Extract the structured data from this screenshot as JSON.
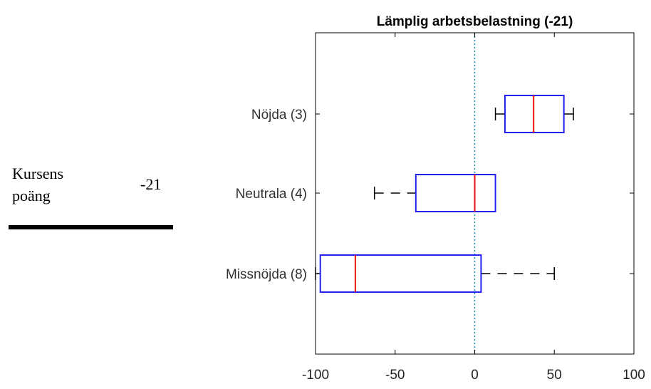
{
  "side_table": {
    "label_line1": "Kursens",
    "label_line2": "poäng",
    "value": "-21"
  },
  "chart_data": {
    "type": "boxplot",
    "orientation": "horizontal",
    "title": "Lämplig arbetsbelastning (-21)",
    "xlim": [
      -100,
      100
    ],
    "x_ticks": [
      -100,
      -50,
      0,
      50,
      100
    ],
    "x_tick_labels": [
      "-100",
      "-50",
      "0",
      "50",
      "100"
    ],
    "reference_line": {
      "x": 0,
      "style": "dotted",
      "color": "#1f8fb0"
    },
    "grid": false,
    "colors": {
      "box": "#2222ee",
      "median": "#ee1111",
      "whisker": "#000000"
    },
    "series": [
      {
        "name": "Nöjda (3)",
        "whisker_low": 13,
        "q1": 19,
        "median": 37,
        "q3": 56,
        "whisker_high": 62
      },
      {
        "name": "Neutrala (4)",
        "whisker_low": -63,
        "q1": -37,
        "median": 0,
        "q3": 13,
        "whisker_high": 13
      },
      {
        "name": "Missnöjda (8)",
        "whisker_low": -100,
        "q1": -97,
        "median": -75,
        "q3": 4,
        "whisker_high": 50
      }
    ]
  }
}
